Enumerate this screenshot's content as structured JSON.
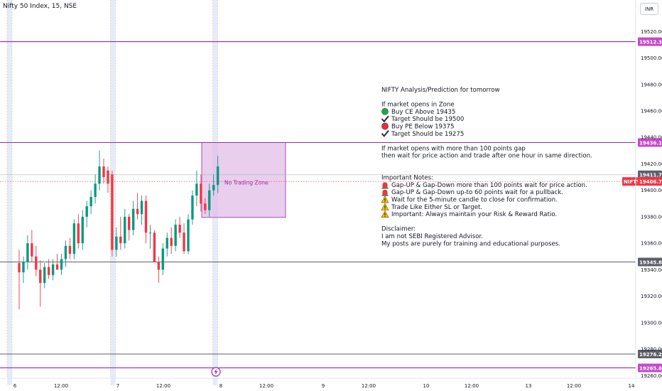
{
  "header": {
    "title": "Nifty 50 Index, 15, NSE",
    "currency_button": "INR"
  },
  "annotation": {
    "zone_label": "No Trading Zone",
    "lines": [
      {
        "text": "NIFTY Analysis/Prediction for tomorrow",
        "icon": ""
      },
      {
        "text": "",
        "icon": ""
      },
      {
        "text": "If market opens in Zone",
        "icon": ""
      },
      {
        "text": "Buy CE Above 19435",
        "icon": "green-circle"
      },
      {
        "text": "Target Should be 19500",
        "icon": "check-mark"
      },
      {
        "text": "Buy PE Below 19375",
        "icon": "red-circle"
      },
      {
        "text": "Target Should be 19275",
        "icon": "check-mark"
      },
      {
        "text": "",
        "icon": ""
      },
      {
        "text": "If market opens with more than 100 points gap",
        "icon": ""
      },
      {
        "text": "then wait for price action and trade after one hour in same direction.",
        "icon": ""
      },
      {
        "text": "",
        "icon": ""
      },
      {
        "text": "",
        "icon": ""
      },
      {
        "text": "Important Notes:",
        "icon": ""
      },
      {
        "text": "Gap-UP & Gap-Down more than 100 points wait for price action.",
        "icon": "siren"
      },
      {
        "text": "Gap-UP & Gap-Down up-to 60 points wait for a pullback.",
        "icon": "siren"
      },
      {
        "text": "Wait for the 5-minute candle to close for confirmation.",
        "icon": "warning"
      },
      {
        "text": "Trade Like Either SL or Target.",
        "icon": "warning"
      },
      {
        "text": "Important: Always maintain your Risk & Reward Ratio.",
        "icon": "warning"
      },
      {
        "text": "",
        "icon": ""
      },
      {
        "text": "Disclaimer:",
        "icon": ""
      },
      {
        "text": "I am not SEBI Registered Advisor.",
        "icon": ""
      },
      {
        "text": "My posts are purely for training and educational purposes.",
        "icon": ""
      }
    ]
  },
  "colors": {
    "up": "#089981",
    "down": "#f23645",
    "level": "#9c27b0",
    "black_level": "#131722",
    "zone_fill": "#e1bee7",
    "session_band": "#e3ecff",
    "session_line": "#ff9800"
  },
  "chart_data": {
    "type": "candlestick",
    "symbol": "NIFTY",
    "y_range": [
      19258,
      19532
    ],
    "y_ticks": [
      "19520.00",
      "19500.00",
      "19480.00",
      "19460.00",
      "19440.00",
      "19420.00",
      "19400.00",
      "19380.00",
      "19360.00",
      "19340.00",
      "19320.00",
      "19300.00",
      "19280.00",
      "19260.00"
    ],
    "x_ticks": [
      "6",
      "12:00",
      "7",
      "12:00",
      "8",
      "12:00",
      "9",
      "12:00",
      "10",
      "12:00",
      "13",
      "12:00",
      "14"
    ],
    "price_levels": [
      {
        "value": 19512.35,
        "label": "19512.35",
        "style": "purple"
      },
      {
        "value": 19436.1,
        "label": "19436.10",
        "style": "purple"
      },
      {
        "value": 19411.75,
        "label": "19411.75",
        "style": "dark"
      },
      {
        "value": 19345.85,
        "label": "19345.85",
        "style": "dark"
      },
      {
        "value": 19276.25,
        "label": "19276.25",
        "style": "dark"
      },
      {
        "value": 19265.8,
        "label": "19265.80",
        "style": "purple"
      }
    ],
    "last_price": {
      "symbol": "NIFTY",
      "value": 19406.7,
      "label": "19406.70"
    },
    "zone": {
      "top": 19436.1,
      "bottom": 19379.5
    },
    "candles": [
      {
        "o": 19345,
        "h": 19355,
        "l": 19310,
        "c": 19338
      },
      {
        "o": 19338,
        "h": 19350,
        "l": 19330,
        "c": 19346
      },
      {
        "o": 19346,
        "h": 19366,
        "l": 19340,
        "c": 19360
      },
      {
        "o": 19360,
        "h": 19370,
        "l": 19346,
        "c": 19350
      },
      {
        "o": 19350,
        "h": 19358,
        "l": 19335,
        "c": 19340
      },
      {
        "o": 19340,
        "h": 19347,
        "l": 19312,
        "c": 19330
      },
      {
        "o": 19330,
        "h": 19345,
        "l": 19326,
        "c": 19342
      },
      {
        "o": 19342,
        "h": 19348,
        "l": 19333,
        "c": 19336
      },
      {
        "o": 19336,
        "h": 19348,
        "l": 19332,
        "c": 19344
      },
      {
        "o": 19344,
        "h": 19352,
        "l": 19340,
        "c": 19340
      },
      {
        "o": 19340,
        "h": 19352,
        "l": 19336,
        "c": 19348
      },
      {
        "o": 19348,
        "h": 19362,
        "l": 19342,
        "c": 19358
      },
      {
        "o": 19358,
        "h": 19364,
        "l": 19348,
        "c": 19352
      },
      {
        "o": 19352,
        "h": 19378,
        "l": 19348,
        "c": 19375
      },
      {
        "o": 19375,
        "h": 19382,
        "l": 19356,
        "c": 19360
      },
      {
        "o": 19360,
        "h": 19385,
        "l": 19355,
        "c": 19380
      },
      {
        "o": 19380,
        "h": 19392,
        "l": 19372,
        "c": 19388
      },
      {
        "o": 19388,
        "h": 19400,
        "l": 19382,
        "c": 19395
      },
      {
        "o": 19395,
        "h": 19412,
        "l": 19390,
        "c": 19405
      },
      {
        "o": 19405,
        "h": 19430,
        "l": 19400,
        "c": 19418
      },
      {
        "o": 19418,
        "h": 19424,
        "l": 19405,
        "c": 19410
      },
      {
        "o": 19415,
        "h": 19418,
        "l": 19398,
        "c": 19405
      },
      {
        "o": 19412,
        "h": 19415,
        "l": 19350,
        "c": 19355
      },
      {
        "o": 19355,
        "h": 19372,
        "l": 19350,
        "c": 19365
      },
      {
        "o": 19365,
        "h": 19380,
        "l": 19355,
        "c": 19360
      },
      {
        "o": 19360,
        "h": 19386,
        "l": 19356,
        "c": 19380
      },
      {
        "o": 19380,
        "h": 19382,
        "l": 19362,
        "c": 19370
      },
      {
        "o": 19370,
        "h": 19392,
        "l": 19366,
        "c": 19386
      },
      {
        "o": 19386,
        "h": 19398,
        "l": 19378,
        "c": 19382
      },
      {
        "o": 19382,
        "h": 19396,
        "l": 19374,
        "c": 19392
      },
      {
        "o": 19392,
        "h": 19396,
        "l": 19360,
        "c": 19368
      },
      {
        "o": 19368,
        "h": 19374,
        "l": 19356,
        "c": 19368
      },
      {
        "o": 19368,
        "h": 19370,
        "l": 19346,
        "c": 19346
      },
      {
        "o": 19346,
        "h": 19350,
        "l": 19330,
        "c": 19340
      },
      {
        "o": 19340,
        "h": 19360,
        "l": 19336,
        "c": 19356
      },
      {
        "o": 19356,
        "h": 19368,
        "l": 19350,
        "c": 19364
      },
      {
        "o": 19364,
        "h": 19372,
        "l": 19352,
        "c": 19358
      },
      {
        "o": 19358,
        "h": 19378,
        "l": 19354,
        "c": 19374
      },
      {
        "o": 19374,
        "h": 19380,
        "l": 19364,
        "c": 19368
      },
      {
        "o": 19368,
        "h": 19375,
        "l": 19352,
        "c": 19354
      },
      {
        "o": 19354,
        "h": 19382,
        "l": 19352,
        "c": 19378
      },
      {
        "o": 19378,
        "h": 19400,
        "l": 19374,
        "c": 19396
      },
      {
        "o": 19396,
        "h": 19415,
        "l": 19388,
        "c": 19405
      },
      {
        "o": 19405,
        "h": 19412,
        "l": 19384,
        "c": 19390
      },
      {
        "o": 19390,
        "h": 19394,
        "l": 19382,
        "c": 19385
      },
      {
        "o": 19385,
        "h": 19405,
        "l": 19380,
        "c": 19400
      },
      {
        "o": 19400,
        "h": 19412,
        "l": 19396,
        "c": 19404
      },
      {
        "o": 19404,
        "h": 19426,
        "l": 19398,
        "c": 19418
      }
    ]
  }
}
